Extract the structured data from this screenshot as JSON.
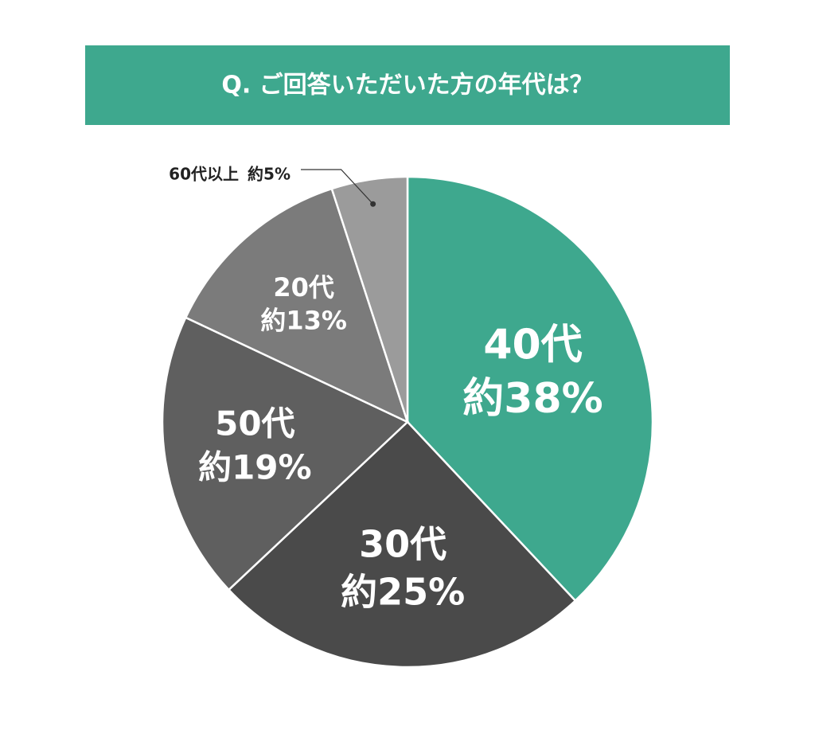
{
  "chart_data": {
    "type": "pie",
    "title": "Q. ご回答いただいた方の年代は？",
    "categories": [
      "40代",
      "30代",
      "50代",
      "20代",
      "60代以上"
    ],
    "values": [
      38,
      25,
      19,
      13,
      5
    ],
    "value_labels": [
      "約38%",
      "約25%",
      "約19%",
      "約13%",
      "約5%"
    ],
    "colors": [
      "#3ea88e",
      "#4a4a4a",
      "#5f5f5f",
      "#7b7b7b",
      "#9b9b9b"
    ]
  }
}
